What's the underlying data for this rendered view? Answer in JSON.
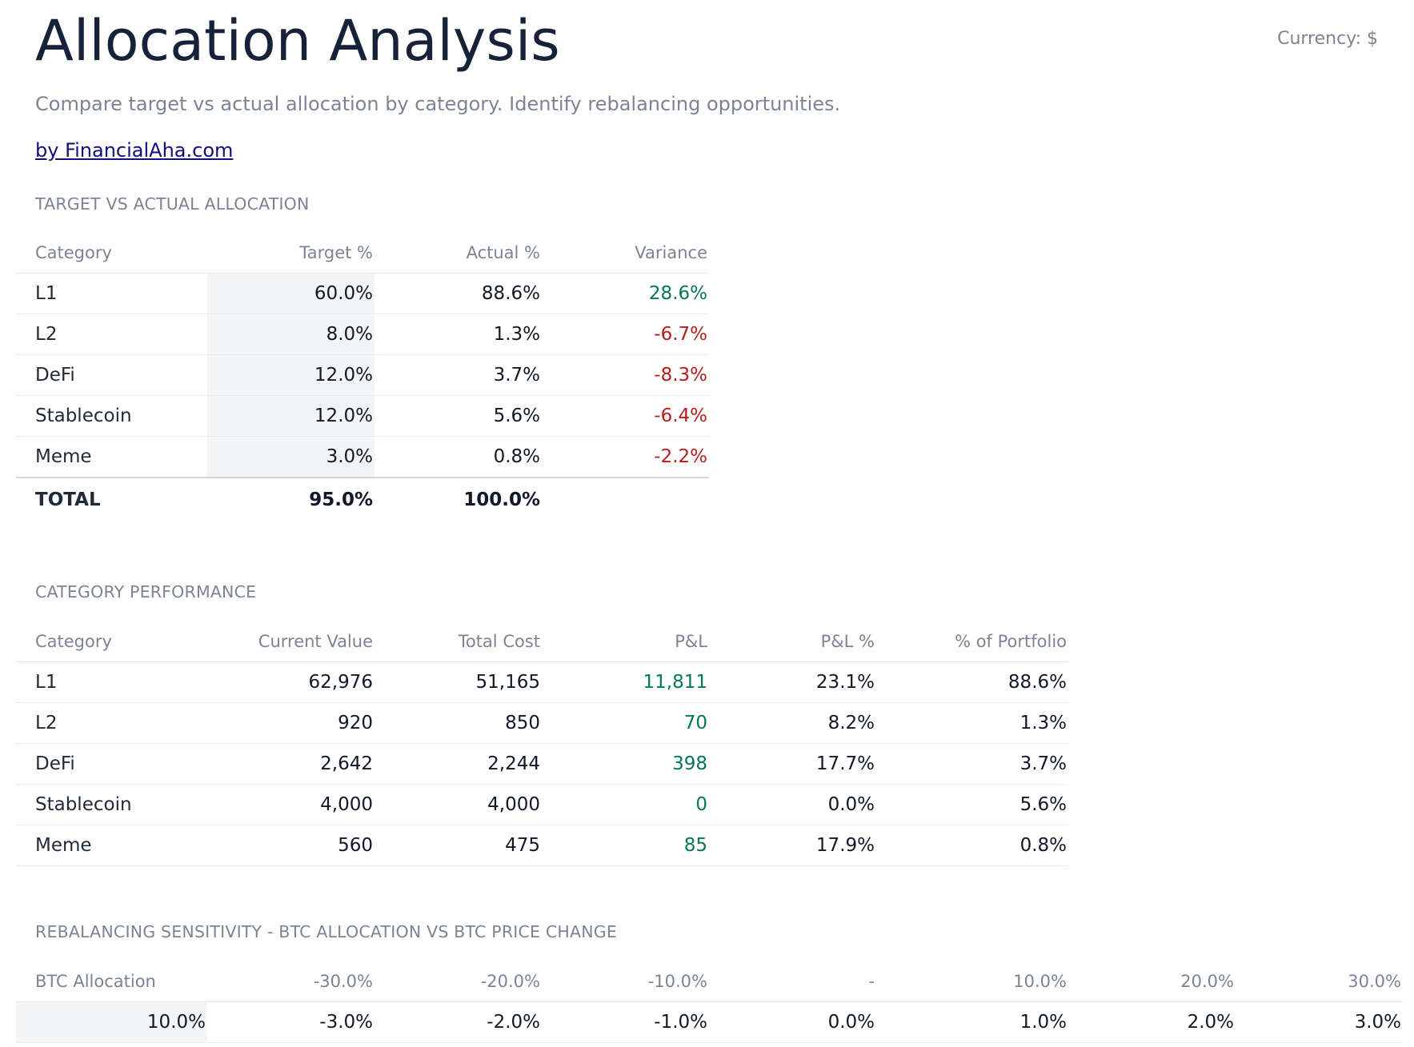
{
  "header": {
    "title": "Allocation Analysis",
    "currency": "Currency: $",
    "subtitle": "Compare target vs actual allocation by category. Identify rebalancing opportunities.",
    "link": "by FinancialAha.com"
  },
  "allocation": {
    "label": "TARGET VS ACTUAL ALLOCATION",
    "columns": [
      "Category",
      "Target %",
      "Actual %",
      "Variance"
    ],
    "rows": [
      [
        "L1",
        "60.0%",
        "88.6%",
        "28.6%"
      ],
      [
        "L2",
        "8.0%",
        "1.3%",
        "-6.7%"
      ],
      [
        "DeFi",
        "12.0%",
        "3.7%",
        "-8.3%"
      ],
      [
        "Stablecoin",
        "12.0%",
        "5.6%",
        "-6.4%"
      ],
      [
        "Meme",
        "3.0%",
        "0.8%",
        "-2.2%"
      ]
    ],
    "total": [
      "TOTAL",
      "95.0%",
      "100.0%"
    ]
  },
  "performance": {
    "label": "CATEGORY PERFORMANCE",
    "columns": [
      "Category",
      "Current Value",
      "Total Cost",
      "P&L",
      "P&L %",
      "% of Portfolio"
    ],
    "rows": [
      [
        "L1",
        "62,976",
        "51,165",
        "11,811",
        "23.1%",
        "88.6%"
      ],
      [
        "L2",
        "920",
        "850",
        "70",
        "8.2%",
        "1.3%"
      ],
      [
        "DeFi",
        "2,642",
        "2,244",
        "398",
        "17.7%",
        "3.7%"
      ],
      [
        "Stablecoin",
        "4,000",
        "4,000",
        "0",
        "0.0%",
        "5.6%"
      ],
      [
        "Meme",
        "560",
        "475",
        "85",
        "17.9%",
        "0.8%"
      ]
    ]
  },
  "sensitivity": {
    "label": "REBALANCING SENSITIVITY - BTC ALLOCATION VS BTC PRICE CHANGE",
    "columns": [
      "BTC Allocation",
      "-30.0%",
      "-20.0%",
      "-10.0%",
      "-",
      "10.0%",
      "20.0%",
      "30.0%"
    ],
    "rows": [
      [
        "10.0%",
        "-3.0%",
        "-2.0%",
        "-1.0%",
        "0.0%",
        "1.0%",
        "2.0%",
        "3.0%"
      ]
    ]
  }
}
